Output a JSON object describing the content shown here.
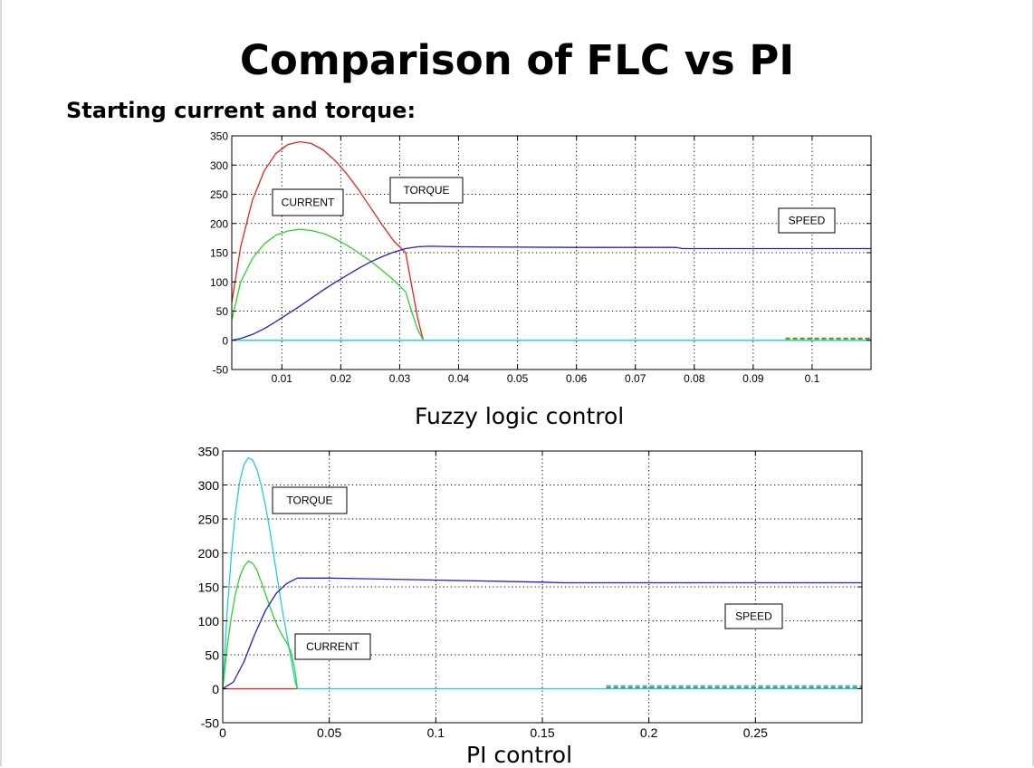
{
  "slide": {
    "title": "Comparison of FLC vs PI",
    "subtitle": "Starting current and torque:"
  },
  "chart_data": [
    {
      "type": "line",
      "caption": "Fuzzy logic control",
      "xlim": [
        0.0015,
        0.11
      ],
      "ylim": [
        -50,
        350
      ],
      "x_ticks": [
        0.01,
        0.02,
        0.03,
        0.04,
        0.05,
        0.06,
        0.07,
        0.08,
        0.09,
        0.1
      ],
      "x_tick_labels": [
        "0.01",
        "0.02",
        "0.03",
        "0.04",
        "0.05",
        "0.06",
        "0.07",
        "0.08",
        "0.09",
        "0.1"
      ],
      "y_ticks": [
        -50,
        0,
        50,
        100,
        150,
        200,
        250,
        300,
        350
      ],
      "y_tick_labels": [
        "-50",
        "0",
        "50",
        "100",
        "150",
        "200",
        "250",
        "300",
        "350"
      ],
      "grid": true,
      "series": [
        {
          "color": "#e8201e",
          "x": [
            0.0015,
            0.003,
            0.005,
            0.007,
            0.009,
            0.011,
            0.013,
            0.015,
            0.017,
            0.019,
            0.021,
            0.023,
            0.025,
            0.027,
            0.029,
            0.031,
            0.032,
            0.033,
            0.034
          ],
          "y": [
            65,
            160,
            240,
            290,
            320,
            335,
            340,
            337,
            326,
            308,
            285,
            258,
            228,
            198,
            170,
            150,
            95,
            40,
            0
          ]
        },
        {
          "color": "#2ad42a",
          "x": [
            0.0015,
            0.003,
            0.005,
            0.007,
            0.009,
            0.011,
            0.013,
            0.015,
            0.017,
            0.019,
            0.021,
            0.023,
            0.025,
            0.027,
            0.029,
            0.031,
            0.032,
            0.033,
            0.034
          ],
          "y": [
            35,
            100,
            140,
            165,
            180,
            187,
            190,
            188,
            183,
            174,
            163,
            150,
            136,
            120,
            103,
            83,
            50,
            20,
            0
          ]
        },
        {
          "color": "#2020c8",
          "x": [
            0.0015,
            0.003,
            0.005,
            0.007,
            0.009,
            0.011,
            0.013,
            0.015,
            0.017,
            0.019,
            0.021,
            0.023,
            0.025,
            0.027,
            0.029,
            0.031,
            0.033,
            0.035,
            0.04,
            0.06,
            0.077,
            0.078,
            0.11
          ],
          "y": [
            0,
            3,
            10,
            20,
            32,
            45,
            58,
            72,
            86,
            99,
            111,
            123,
            134,
            143,
            151,
            157,
            160,
            161,
            160,
            159,
            159,
            157,
            157
          ]
        },
        {
          "color": "#20d0d0",
          "x": [
            0.0015,
            0.11
          ],
          "y": [
            0,
            0
          ]
        },
        {
          "color": "#e8201e",
          "style": "dashed",
          "x": [
            0.0955,
            0.11
          ],
          "y": [
            3,
            3
          ]
        },
        {
          "color": "#2ad42a",
          "style": "dashed",
          "x": [
            0.0955,
            0.11
          ],
          "y": [
            2,
            2
          ]
        }
      ],
      "annotations": [
        {
          "text": "CURRENT"
        },
        {
          "text": "TORQUE"
        },
        {
          "text": "SPEED"
        }
      ]
    },
    {
      "type": "line",
      "caption": "PI control",
      "xlim": [
        0,
        0.3
      ],
      "ylim": [
        -50,
        350
      ],
      "x_ticks": [
        0,
        0.05,
        0.1,
        0.15,
        0.2,
        0.25
      ],
      "x_tick_labels": [
        "0",
        "0.05",
        "0.1",
        "0.15",
        "0.2",
        "0.25"
      ],
      "y_ticks": [
        -50,
        0,
        50,
        100,
        150,
        200,
        250,
        300,
        350
      ],
      "y_tick_labels": [
        "-50",
        "0",
        "50",
        "100",
        "150",
        "200",
        "250",
        "300",
        "350"
      ],
      "grid": true,
      "series": [
        {
          "color": "#e8201e",
          "x": [
            0,
            0.035
          ],
          "y": [
            0,
            0
          ]
        },
        {
          "color": "#20d0d0",
          "x": [
            0,
            0.002,
            0.004,
            0.006,
            0.008,
            0.01,
            0.012,
            0.014,
            0.016,
            0.018,
            0.02,
            0.022,
            0.024,
            0.026,
            0.028,
            0.03,
            0.032,
            0.034,
            0.035,
            0.18,
            0.3
          ],
          "y": [
            0,
            110,
            195,
            260,
            305,
            330,
            340,
            337,
            323,
            300,
            270,
            235,
            195,
            155,
            115,
            80,
            45,
            10,
            0,
            0,
            0
          ]
        },
        {
          "color": "#2ad42a",
          "x": [
            0,
            0.002,
            0.004,
            0.006,
            0.008,
            0.01,
            0.012,
            0.014,
            0.016,
            0.018,
            0.02,
            0.022,
            0.024,
            0.026,
            0.028,
            0.03,
            0.032,
            0.034,
            0.035
          ],
          "y": [
            0,
            60,
            105,
            140,
            165,
            180,
            188,
            185,
            175,
            158,
            140,
            122,
            105,
            90,
            78,
            68,
            55,
            25,
            0
          ]
        },
        {
          "color": "#2020c8",
          "x": [
            0,
            0.005,
            0.01,
            0.015,
            0.02,
            0.025,
            0.03,
            0.035,
            0.05,
            0.1,
            0.15,
            0.16,
            0.3
          ],
          "y": [
            0,
            10,
            40,
            80,
            115,
            140,
            155,
            163,
            163,
            160,
            157,
            156,
            156
          ]
        },
        {
          "color": "#e8201e",
          "style": "dashed",
          "x": [
            0.18,
            0.3
          ],
          "y": [
            2,
            2
          ]
        },
        {
          "color": "#2ad42a",
          "style": "dashed",
          "x": [
            0.18,
            0.3
          ],
          "y": [
            4,
            4
          ]
        },
        {
          "color": "#20d0d0",
          "style": "dashed",
          "x": [
            0.18,
            0.3
          ],
          "y": [
            3,
            3
          ]
        }
      ],
      "annotations": [
        {
          "text": "TORQUE"
        },
        {
          "text": "CURRENT"
        },
        {
          "text": "SPEED"
        }
      ]
    }
  ]
}
